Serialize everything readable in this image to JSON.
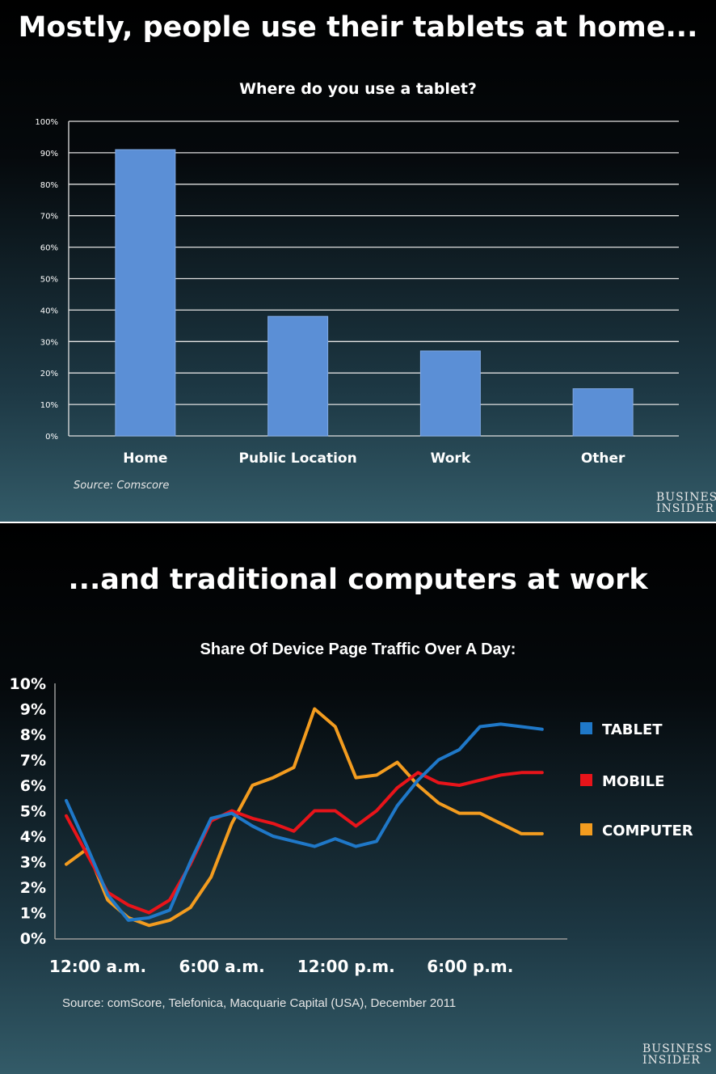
{
  "panel1": {
    "headline": "Mostly, people use their tablets at home...",
    "source": "Source: Comscore",
    "logo_line1": "BUSINESS",
    "logo_line2": "INSIDER"
  },
  "panel2": {
    "headline": "...and traditional computers at work",
    "source": "Source: comScore, Telefonica, Macquarie Capital (USA), December 2011",
    "logo_line1": "BUSINESS",
    "logo_line2": "INSIDER"
  },
  "colors": {
    "bar": "#5b8fd6",
    "tablet": "#1f78c8",
    "mobile": "#e8141a",
    "computer": "#f39c1f"
  },
  "chart_data": [
    {
      "type": "bar",
      "title": "Where do you use a tablet?",
      "categories": [
        "Home",
        "Public Location",
        "Work",
        "Other"
      ],
      "values": [
        91,
        38,
        27,
        15
      ],
      "yticks": [
        "0%",
        "10%",
        "20%",
        "30%",
        "40%",
        "50%",
        "60%",
        "70%",
        "80%",
        "90%",
        "100%"
      ],
      "ylim": [
        0,
        100
      ],
      "grid": true
    },
    {
      "type": "line",
      "title": "Share Of Device Page Traffic Over A Day:",
      "x": [
        0,
        1,
        2,
        3,
        4,
        5,
        6,
        7,
        8,
        9,
        10,
        11,
        12,
        13,
        14,
        15,
        16,
        17,
        18,
        19,
        20,
        21,
        22,
        23
      ],
      "xticks": [
        {
          "x": 0,
          "label": "12:00 a.m."
        },
        {
          "x": 6,
          "label": "6:00 a.m."
        },
        {
          "x": 12,
          "label": "12:00 p.m."
        },
        {
          "x": 18,
          "label": "6:00 p.m."
        }
      ],
      "yticks": [
        "0%",
        "1%",
        "2%",
        "3%",
        "4%",
        "5%",
        "6%",
        "7%",
        "8%",
        "9%",
        "10%"
      ],
      "ylim": [
        0,
        10
      ],
      "legend_position": "right",
      "series": [
        {
          "name": "TABLET",
          "color": "#1f78c8",
          "values": [
            5.4,
            3.6,
            1.7,
            0.7,
            0.8,
            1.1,
            3.0,
            4.7,
            4.9,
            4.4,
            4.0,
            3.8,
            3.6,
            3.9,
            3.6,
            3.8,
            5.2,
            6.2,
            7.0,
            7.4,
            8.3,
            8.4,
            8.3,
            8.2
          ]
        },
        {
          "name": "MOBILE",
          "color": "#e8141a",
          "values": [
            4.8,
            3.3,
            1.8,
            1.3,
            1.0,
            1.5,
            2.9,
            4.6,
            5.0,
            4.7,
            4.5,
            4.2,
            5.0,
            5.0,
            4.4,
            5.0,
            5.9,
            6.5,
            6.1,
            6.0,
            6.2,
            6.4,
            6.5,
            6.5
          ]
        },
        {
          "name": "COMPUTER",
          "color": "#f39c1f",
          "values": [
            2.9,
            3.5,
            1.5,
            0.8,
            0.5,
            0.7,
            1.2,
            2.4,
            4.5,
            6.0,
            6.3,
            6.7,
            9.0,
            8.3,
            6.3,
            6.4,
            6.9,
            6.0,
            5.3,
            4.9,
            4.9,
            4.5,
            4.1,
            4.1
          ]
        }
      ]
    }
  ]
}
